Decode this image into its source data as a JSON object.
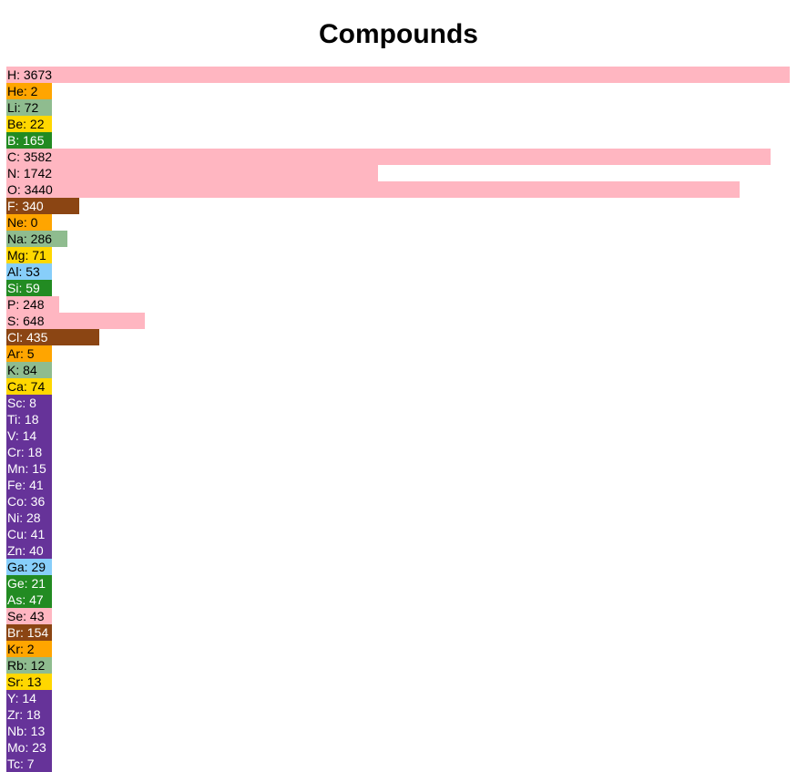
{
  "chart_data": {
    "type": "bar",
    "orientation": "horizontal",
    "title": "Compounds",
    "xlabel": "",
    "ylabel": "",
    "xlim": [
      0,
      3673
    ],
    "categories": [
      "H",
      "He",
      "Li",
      "Be",
      "B",
      "C",
      "N",
      "O",
      "F",
      "Ne",
      "Na",
      "Mg",
      "Al",
      "Si",
      "P",
      "S",
      "Cl",
      "Ar",
      "K",
      "Ca",
      "Sc",
      "Ti",
      "V",
      "Cr",
      "Mn",
      "Fe",
      "Co",
      "Ni",
      "Cu",
      "Zn",
      "Ga",
      "Ge",
      "As",
      "Se",
      "Br",
      "Kr",
      "Rb",
      "Sr",
      "Y",
      "Zr",
      "Nb",
      "Mo",
      "Tc"
    ],
    "values": [
      3673,
      2,
      72,
      22,
      165,
      3582,
      1742,
      3440,
      340,
      0,
      286,
      71,
      53,
      59,
      248,
      648,
      435,
      5,
      84,
      74,
      8,
      18,
      14,
      18,
      15,
      41,
      36,
      28,
      41,
      40,
      29,
      21,
      47,
      43,
      154,
      2,
      12,
      13,
      14,
      18,
      13,
      23,
      7
    ],
    "labels": [
      "H: 3673",
      "He: 2",
      "Li: 72",
      "Be: 22",
      "B: 165",
      "C: 3582",
      "N: 1742",
      "O: 3440",
      "F: 340",
      "Ne: 0",
      "Na: 286",
      "Mg: 71",
      "Al: 53",
      "Si: 59",
      "P: 248",
      "S: 648",
      "Cl: 435",
      "Ar: 5",
      "K: 84",
      "Ca: 74",
      "Sc: 8",
      "Ti: 18",
      "V: 14",
      "Cr: 18",
      "Mn: 15",
      "Fe: 41",
      "Co: 36",
      "Ni: 28",
      "Cu: 41",
      "Zn: 40",
      "Ga: 29",
      "Ge: 21",
      "As: 47",
      "Se: 43",
      "Br: 154",
      "Kr: 2",
      "Rb: 12",
      "Sr: 13",
      "Y: 14",
      "Zr: 18",
      "Nb: 13",
      "Mo: 23",
      "Tc: 7"
    ],
    "groups": [
      "nonmetal",
      "noble",
      "alkali",
      "alkaline",
      "metalloid",
      "nonmetal",
      "nonmetal",
      "nonmetal",
      "halogen",
      "noble",
      "alkali",
      "alkaline",
      "post-transition",
      "metalloid",
      "nonmetal",
      "nonmetal",
      "halogen",
      "noble",
      "alkali",
      "alkaline",
      "transition",
      "transition",
      "transition",
      "transition",
      "transition",
      "transition",
      "transition",
      "transition",
      "transition",
      "transition",
      "post-transition",
      "metalloid",
      "metalloid",
      "nonmetal",
      "halogen",
      "noble",
      "alkali",
      "alkaline",
      "transition",
      "transition",
      "transition",
      "transition",
      "transition"
    ],
    "group_colors": {
      "nonmetal": "#ffb6c1",
      "noble": "#ffa500",
      "alkali": "#8fbc8f",
      "alkaline": "#ffd700",
      "metalloid": "#228b22",
      "halogen": "#8b4513",
      "post-transition": "#87cefa",
      "transition": "#663399"
    },
    "group_text_colors": {
      "nonmetal": "#000000",
      "noble": "#000000",
      "alkali": "#000000",
      "alkaline": "#000000",
      "metalloid": "#ffffff",
      "halogen": "#ffffff",
      "post-transition": "#000000",
      "transition": "#ffffff"
    }
  }
}
